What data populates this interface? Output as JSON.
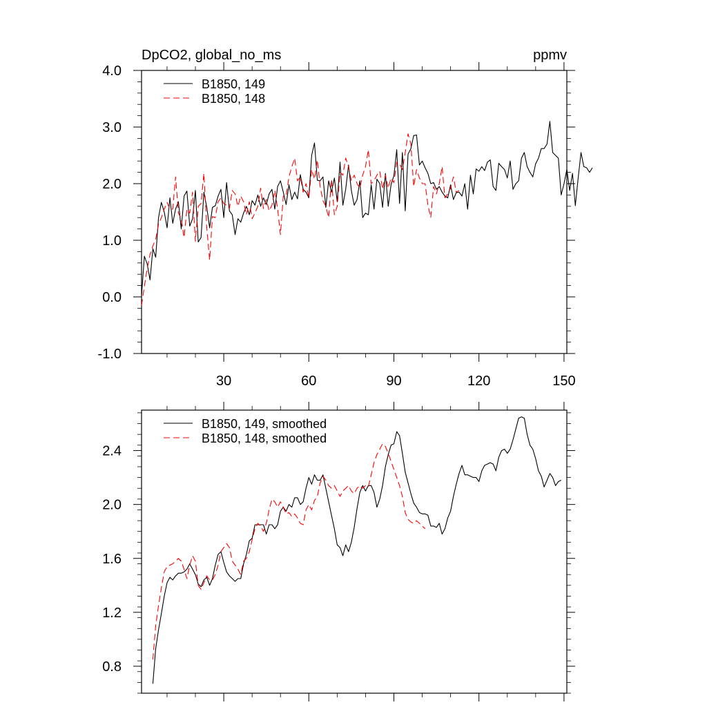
{
  "chart_data": [
    {
      "type": "line",
      "title": "DpCO2, global_no_ms",
      "units": "ppmv",
      "xlabel": "",
      "ylabel": "",
      "xlim": [
        1,
        151
      ],
      "ylim": [
        -1.0,
        4.0
      ],
      "xticks": [
        30,
        60,
        90,
        120,
        150
      ],
      "xtick_labels": [
        "30",
        "60",
        "90",
        "120",
        "150"
      ],
      "yticks": [
        -1.0,
        0.0,
        1.0,
        2.0,
        3.0,
        4.0
      ],
      "ytick_labels": [
        "-1.0",
        "0.0",
        "1.0",
        "2.0",
        "3.0",
        "4.0"
      ],
      "grid": false,
      "legend_position": "top-left",
      "series": [
        {
          "name": "B1850, 149",
          "color": "#000000",
          "dash": "solid",
          "x_start": 1,
          "values": [
            0.02,
            0.72,
            0.58,
            0.3,
            0.85,
            0.7,
            1.4,
            1.67,
            1.5,
            1.22,
            1.75,
            1.3,
            1.55,
            1.68,
            1.2,
            1.78,
            1.87,
            1.25,
            1.38,
            1.88,
            0.97,
            1.05,
            1.85,
            1.58,
            1.22,
            1.58,
            1.61,
            1.78,
            1.9,
            1.4,
            2.02,
            1.52,
            1.45,
            1.1,
            1.38,
            1.32,
            1.48,
            1.6,
            1.45,
            1.7,
            1.62,
            1.8,
            1.6,
            1.75,
            1.63,
            1.82,
            1.9,
            1.55,
            1.95,
            2.05,
            1.85,
            1.63,
            1.98,
            1.72,
            1.85,
            1.73,
            2.16,
            1.9,
            1.85,
            1.75,
            2.5,
            2.72,
            2.06,
            2.05,
            2.12,
            1.58,
            2.05,
            1.85,
            2.1,
            1.68,
            2.38,
            1.62,
            1.9,
            2.33,
            1.88,
            1.62,
            1.72,
            2.05,
            1.4,
            1.48,
            1.45,
            1.98,
            1.55,
            2.08,
            2.0,
            1.58,
            2.18,
            1.6,
            1.98,
            2.14,
            2.6,
            1.65,
            2.55,
            1.52,
            2.52,
            2.62,
            2.85,
            2.86,
            2.33,
            2.4,
            2.28,
            2.18,
            2.0,
            2.02,
            1.9,
            1.95,
            1.85,
            1.78,
            1.75,
            1.98,
            1.72,
            1.84,
            1.85,
            1.78,
            2.0,
            1.55,
            2.15,
            1.82,
            2.26,
            2.22,
            2.3,
            2.23,
            2.38,
            2.42,
            1.95,
            1.88,
            2.36,
            2.3,
            2.25,
            2.1,
            2.4,
            1.9,
            2.0,
            2.05,
            2.45,
            2.55,
            2.3,
            2.2,
            2.12,
            2.35,
            2.45,
            2.62,
            2.62,
            2.7,
            3.1,
            2.55,
            2.5,
            2.45,
            1.8,
            2.0,
            2.25,
            1.88,
            2.18,
            1.61,
            2.1,
            2.55,
            2.3,
            2.28,
            2.2,
            2.28
          ]
        },
        {
          "name": "B1850, 148",
          "color": "#ff0000",
          "dash": "dashed",
          "x_start": 1,
          "values": [
            -0.15,
            0.18,
            0.5,
            0.75,
            0.9,
            1.02,
            1.28,
            1.4,
            1.55,
            1.67,
            1.55,
            1.55,
            2.12,
            1.48,
            1.38,
            1.05,
            1.55,
            1.48,
            1.85,
            0.98,
            1.6,
            1.65,
            2.18,
            1.22,
            0.65,
            1.42,
            1.4,
            1.68,
            1.75,
            1.65,
            1.62,
            1.56,
            1.88,
            1.82,
            1.6,
            1.78,
            1.68,
            1.45,
            1.68,
            1.38,
            1.48,
            1.6,
            1.92,
            1.56,
            1.72,
            1.52,
            1.62,
            1.88,
            1.55,
            1.1,
            1.78,
            1.78,
            2.12,
            2.3,
            2.45,
            2.05,
            2.12,
            1.85,
            2.0,
            1.75,
            2.25,
            2.08,
            2.42,
            1.95,
            1.7,
            1.6,
            1.4,
            2.08,
            1.45,
            1.6,
            2.2,
            2.15,
            2.45,
            2.3,
            2.05,
            2.15,
            2.0,
            1.92,
            2.15,
            2.3,
            2.6,
            2.0,
            2.05,
            2.15,
            2.22,
            1.9,
            2.15,
            1.92,
            2.1,
            2.02,
            2.38,
            2.35,
            2.25,
            2.55,
            2.88,
            2.7,
            1.95,
            2.25,
            2.1,
            2.0,
            2.0,
            1.62,
            1.4,
            1.95,
            1.82,
            2.0,
            2.3,
            1.75,
            1.82,
            1.92,
            2.12,
            1.85,
            1.88
          ]
        }
      ]
    },
    {
      "type": "line",
      "title": "",
      "xlabel": "",
      "ylabel": "",
      "xlim": [
        1,
        151
      ],
      "ylim": [
        0.6,
        2.7
      ],
      "xticks": [
        30,
        60,
        90,
        120,
        150
      ],
      "yticks": [
        0.8,
        1.2,
        1.6,
        2.0,
        2.4
      ],
      "ytick_labels": [
        "0.8",
        "1.2",
        "1.6",
        "2.0",
        "2.4"
      ],
      "grid": false,
      "legend_position": "top-left",
      "series": [
        {
          "name": "B1850, 149, smoothed",
          "color": "#000000",
          "dash": "solid",
          "x_start": 5,
          "values": [
            0.67,
            0.93,
            1.07,
            1.19,
            1.32,
            1.42,
            1.46,
            1.44,
            1.47,
            1.49,
            1.49,
            1.5,
            1.52,
            1.56,
            1.52,
            1.48,
            1.41,
            1.39,
            1.44,
            1.46,
            1.4,
            1.45,
            1.55,
            1.63,
            1.65,
            1.57,
            1.5,
            1.47,
            1.45,
            1.43,
            1.45,
            1.45,
            1.56,
            1.63,
            1.73,
            1.75,
            1.85,
            1.85,
            1.85,
            1.85,
            1.78,
            1.85,
            1.85,
            1.82,
            1.85,
            1.95,
            1.98,
            1.95,
            2.0,
            1.98,
            2.05,
            2.05,
            2.0,
            2.02,
            2.12,
            2.2,
            2.15,
            2.22,
            2.18,
            2.18,
            2.22,
            2.12,
            2.02,
            1.92,
            1.82,
            1.7,
            1.68,
            1.62,
            1.7,
            1.65,
            1.72,
            1.83,
            1.97,
            2.09,
            2.14,
            2.1,
            2.14,
            2.14,
            2.09,
            1.98,
            2.04,
            2.14,
            2.28,
            2.37,
            2.44,
            2.45,
            2.54,
            2.51,
            2.38,
            2.24,
            2.16,
            2.08,
            2.01,
            1.98,
            1.94,
            1.93,
            1.93,
            1.92,
            1.84,
            1.84,
            1.83,
            1.86,
            1.78,
            1.82,
            1.9,
            1.95,
            2.06,
            2.15,
            2.23,
            2.29,
            2.22,
            2.22,
            2.21,
            2.2,
            2.2,
            2.17,
            2.25,
            2.29,
            2.3,
            2.31,
            2.3,
            2.25,
            2.35,
            2.4,
            2.41,
            2.38,
            2.41,
            2.48,
            2.56,
            2.64,
            2.65,
            2.64,
            2.52,
            2.44,
            2.41,
            2.34,
            2.25,
            2.21,
            2.13,
            2.18,
            2.23,
            2.2,
            2.14,
            2.17,
            2.18
          ]
        },
        {
          "name": "B1850, 148, smoothed",
          "color": "#ff0000",
          "dash": "dashed",
          "x_start": 5,
          "values": [
            0.85,
            1.1,
            1.25,
            1.38,
            1.5,
            1.54,
            1.55,
            1.56,
            1.58,
            1.6,
            1.58,
            1.52,
            1.45,
            1.55,
            1.62,
            1.58,
            1.4,
            1.37,
            1.42,
            1.47,
            1.44,
            1.44,
            1.48,
            1.55,
            1.65,
            1.68,
            1.71,
            1.68,
            1.58,
            1.55,
            1.52,
            1.48,
            1.58,
            1.6,
            1.65,
            1.74,
            1.82,
            1.86,
            1.84,
            1.8,
            1.86,
            1.96,
            2.04,
            2.02,
            1.98,
            2.02,
            1.98,
            1.93,
            1.94,
            1.91,
            1.93,
            1.9,
            1.86,
            1.85,
            1.96,
            2.0,
            1.96,
            2.03,
            2.06,
            2.16,
            2.21,
            2.18,
            2.14,
            2.12,
            2.14,
            2.1,
            2.06,
            2.1,
            2.12,
            2.14,
            2.1,
            2.08,
            2.12,
            2.14,
            2.12,
            2.14,
            2.13,
            2.22,
            2.31,
            2.37,
            2.41,
            2.45,
            2.43,
            2.38,
            2.32,
            2.26,
            2.2,
            2.14,
            2.06,
            1.94,
            1.89,
            1.87,
            1.86,
            1.88,
            1.86,
            1.84,
            1.82
          ]
        }
      ]
    }
  ]
}
